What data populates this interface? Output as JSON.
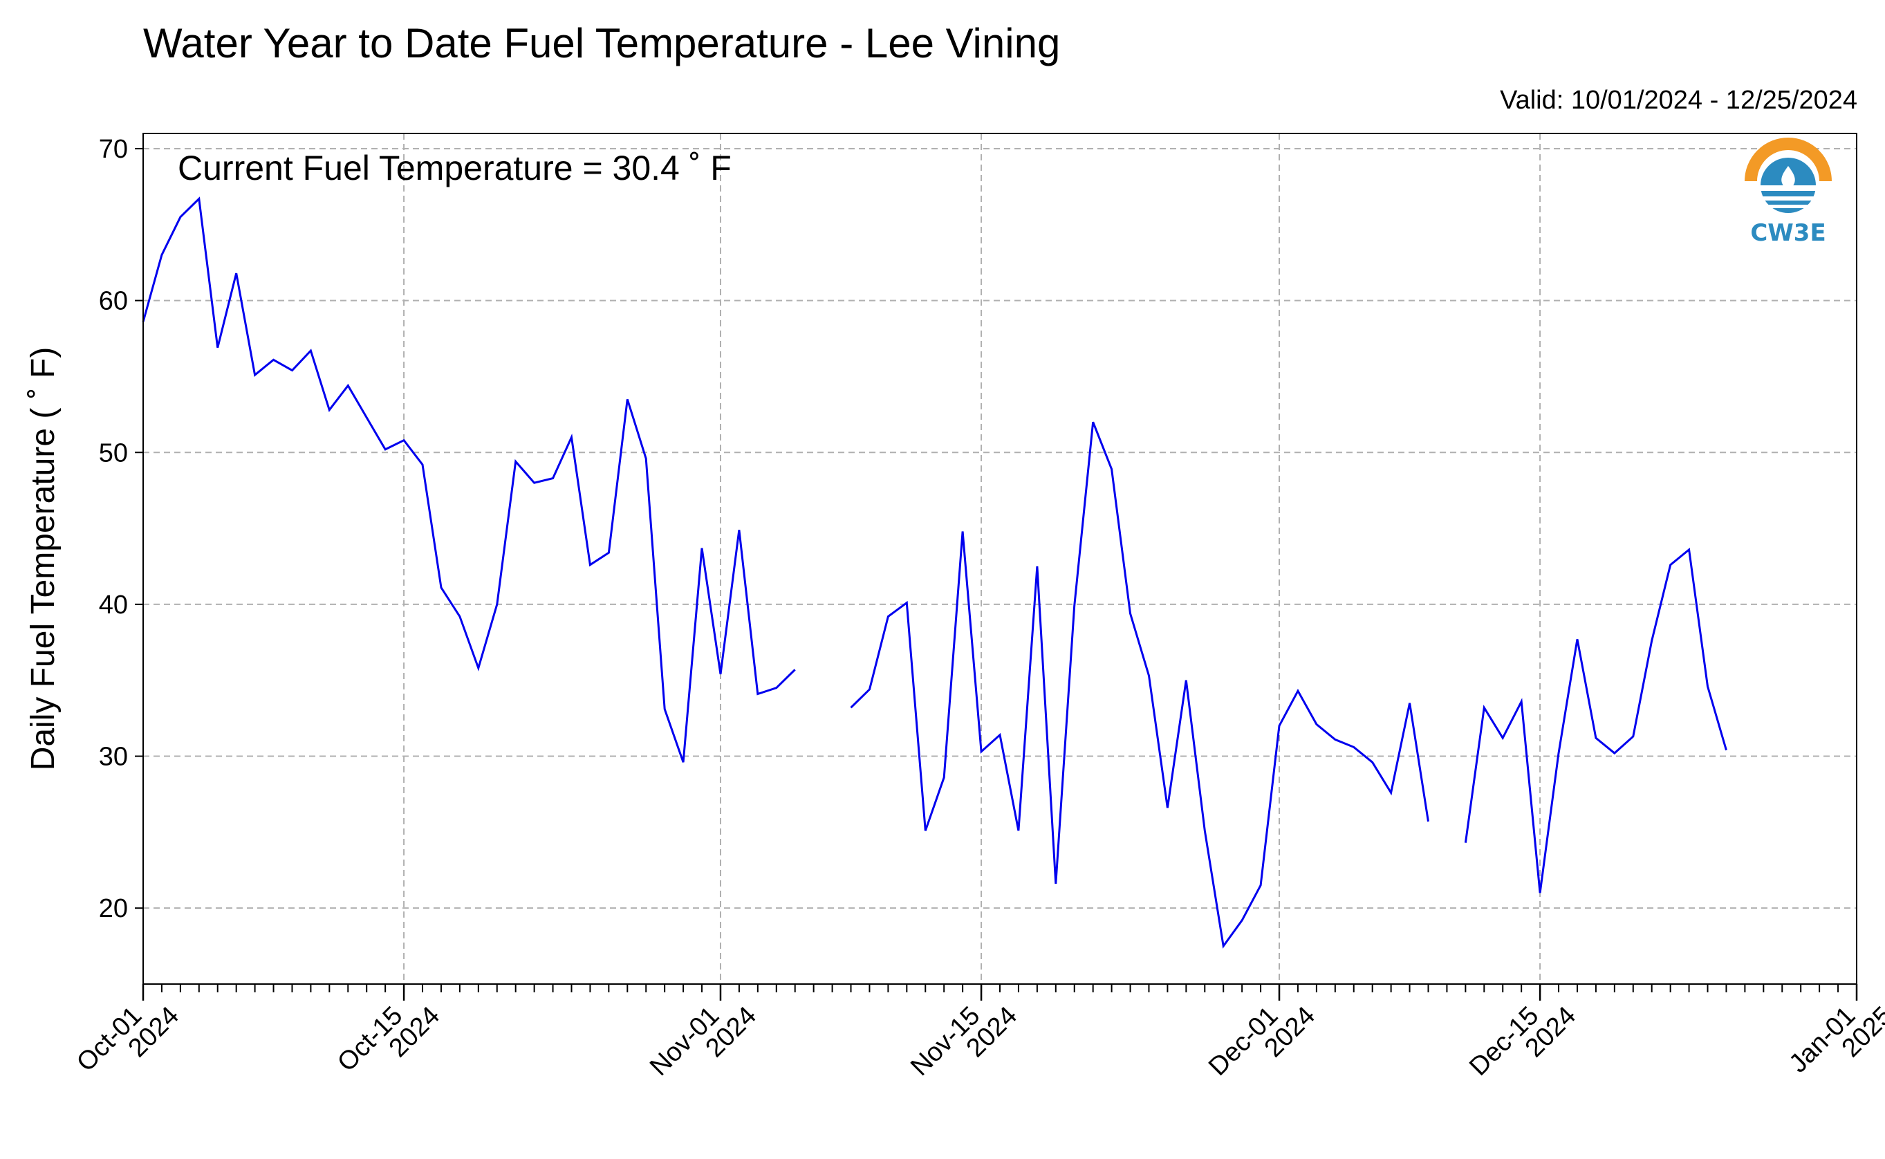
{
  "header": {
    "title": "Water Year to Date Fuel Temperature - Lee Vining",
    "valid_range": "Valid: 10/01/2024 - 12/25/2024"
  },
  "logo": {
    "text": "CW3E",
    "icon": "cw3e-logo-icon",
    "colors": {
      "orange": "#F39A26",
      "blue": "#2C8BC0"
    }
  },
  "chart_data": {
    "type": "line",
    "title": "Water Year to Date Fuel Temperature - Lee Vining",
    "xlabel": "",
    "ylabel": "Daily Fuel Temperature ( $^\\circ$F)",
    "ylabel_display": "Daily Fuel Temperature ( ˚ F)",
    "annotation": "Current Fuel Temperature = 30.4  ˚ F",
    "x_start": "2024-10-01",
    "xlim": [
      "2024-10-01",
      "2025-01-01"
    ],
    "ylim": [
      15,
      71
    ],
    "yticks": [
      20,
      30,
      40,
      50,
      60,
      70
    ],
    "xticks": [
      {
        "date": "2024-10-01",
        "line1": "Oct-01",
        "line2": "2024"
      },
      {
        "date": "2024-10-15",
        "line1": "Oct-15",
        "line2": "2024"
      },
      {
        "date": "2024-11-01",
        "line1": "Nov-01",
        "line2": "2024"
      },
      {
        "date": "2024-11-15",
        "line1": "Nov-15",
        "line2": "2024"
      },
      {
        "date": "2024-12-01",
        "line1": "Dec-01",
        "line2": "2024"
      },
      {
        "date": "2024-12-15",
        "line1": "Dec-15",
        "line2": "2024"
      },
      {
        "date": "2025-01-01",
        "line1": "Jan-01",
        "line2": "2025"
      }
    ],
    "grid": true,
    "line_color": "#0000EE",
    "series": [
      {
        "dates": [
          "2024-10-01",
          "2024-10-02",
          "2024-10-03",
          "2024-10-04",
          "2024-10-05",
          "2024-10-06",
          "2024-10-07",
          "2024-10-08",
          "2024-10-09",
          "2024-10-10",
          "2024-10-11",
          "2024-10-12",
          "2024-10-13",
          "2024-10-14",
          "2024-10-15",
          "2024-10-16",
          "2024-10-17",
          "2024-10-18",
          "2024-10-19",
          "2024-10-20",
          "2024-10-21",
          "2024-10-22",
          "2024-10-23",
          "2024-10-24",
          "2024-10-25",
          "2024-10-26",
          "2024-10-27",
          "2024-10-28",
          "2024-10-29",
          "2024-10-30",
          "2024-10-31",
          "2024-11-01",
          "2024-11-02",
          "2024-11-03",
          "2024-11-04",
          "2024-11-05",
          "2024-11-06",
          "2024-11-07",
          "2024-11-08",
          "2024-11-09",
          "2024-11-10",
          "2024-11-11",
          "2024-11-12",
          "2024-11-13",
          "2024-11-14",
          "2024-11-15",
          "2024-11-16",
          "2024-11-17",
          "2024-11-18",
          "2024-11-19",
          "2024-11-20",
          "2024-11-21",
          "2024-11-22",
          "2024-11-23",
          "2024-11-24",
          "2024-11-25",
          "2024-11-26",
          "2024-11-27",
          "2024-11-28",
          "2024-11-29",
          "2024-11-30",
          "2024-12-01",
          "2024-12-02",
          "2024-12-03",
          "2024-12-04",
          "2024-12-05",
          "2024-12-06",
          "2024-12-07",
          "2024-12-08",
          "2024-12-09",
          "2024-12-10",
          "2024-12-11",
          "2024-12-12",
          "2024-12-13",
          "2024-12-14",
          "2024-12-15",
          "2024-12-16",
          "2024-12-17",
          "2024-12-18",
          "2024-12-19",
          "2024-12-20",
          "2024-12-21",
          "2024-12-22",
          "2024-12-23",
          "2024-12-24",
          "2024-12-25"
        ],
        "values": [
          58.6,
          63.0,
          65.5,
          66.7,
          56.9,
          61.8,
          55.1,
          56.1,
          55.4,
          56.7,
          52.8,
          54.4,
          52.3,
          50.2,
          50.8,
          49.2,
          41.1,
          39.2,
          35.8,
          40.0,
          49.4,
          48.0,
          48.3,
          51.0,
          42.6,
          43.4,
          53.5,
          49.6,
          33.1,
          29.6,
          43.7,
          35.4,
          44.9,
          34.1,
          34.5,
          35.7,
          null,
          null,
          33.2,
          34.4,
          39.2,
          40.1,
          25.1,
          28.6,
          44.8,
          30.3,
          31.4,
          25.1,
          42.5,
          21.6,
          39.9,
          52.0,
          48.9,
          39.4,
          35.3,
          26.6,
          35.0,
          25.1,
          17.5,
          19.2,
          21.5,
          32.0,
          34.3,
          32.1,
          31.1,
          30.6,
          29.6,
          27.6,
          33.5,
          25.7,
          null,
          24.3,
          33.2,
          31.2,
          33.6,
          21.0,
          30.2,
          37.7,
          31.2,
          30.2,
          31.3,
          37.6,
          42.6,
          43.6,
          34.6,
          30.4
        ]
      }
    ]
  }
}
